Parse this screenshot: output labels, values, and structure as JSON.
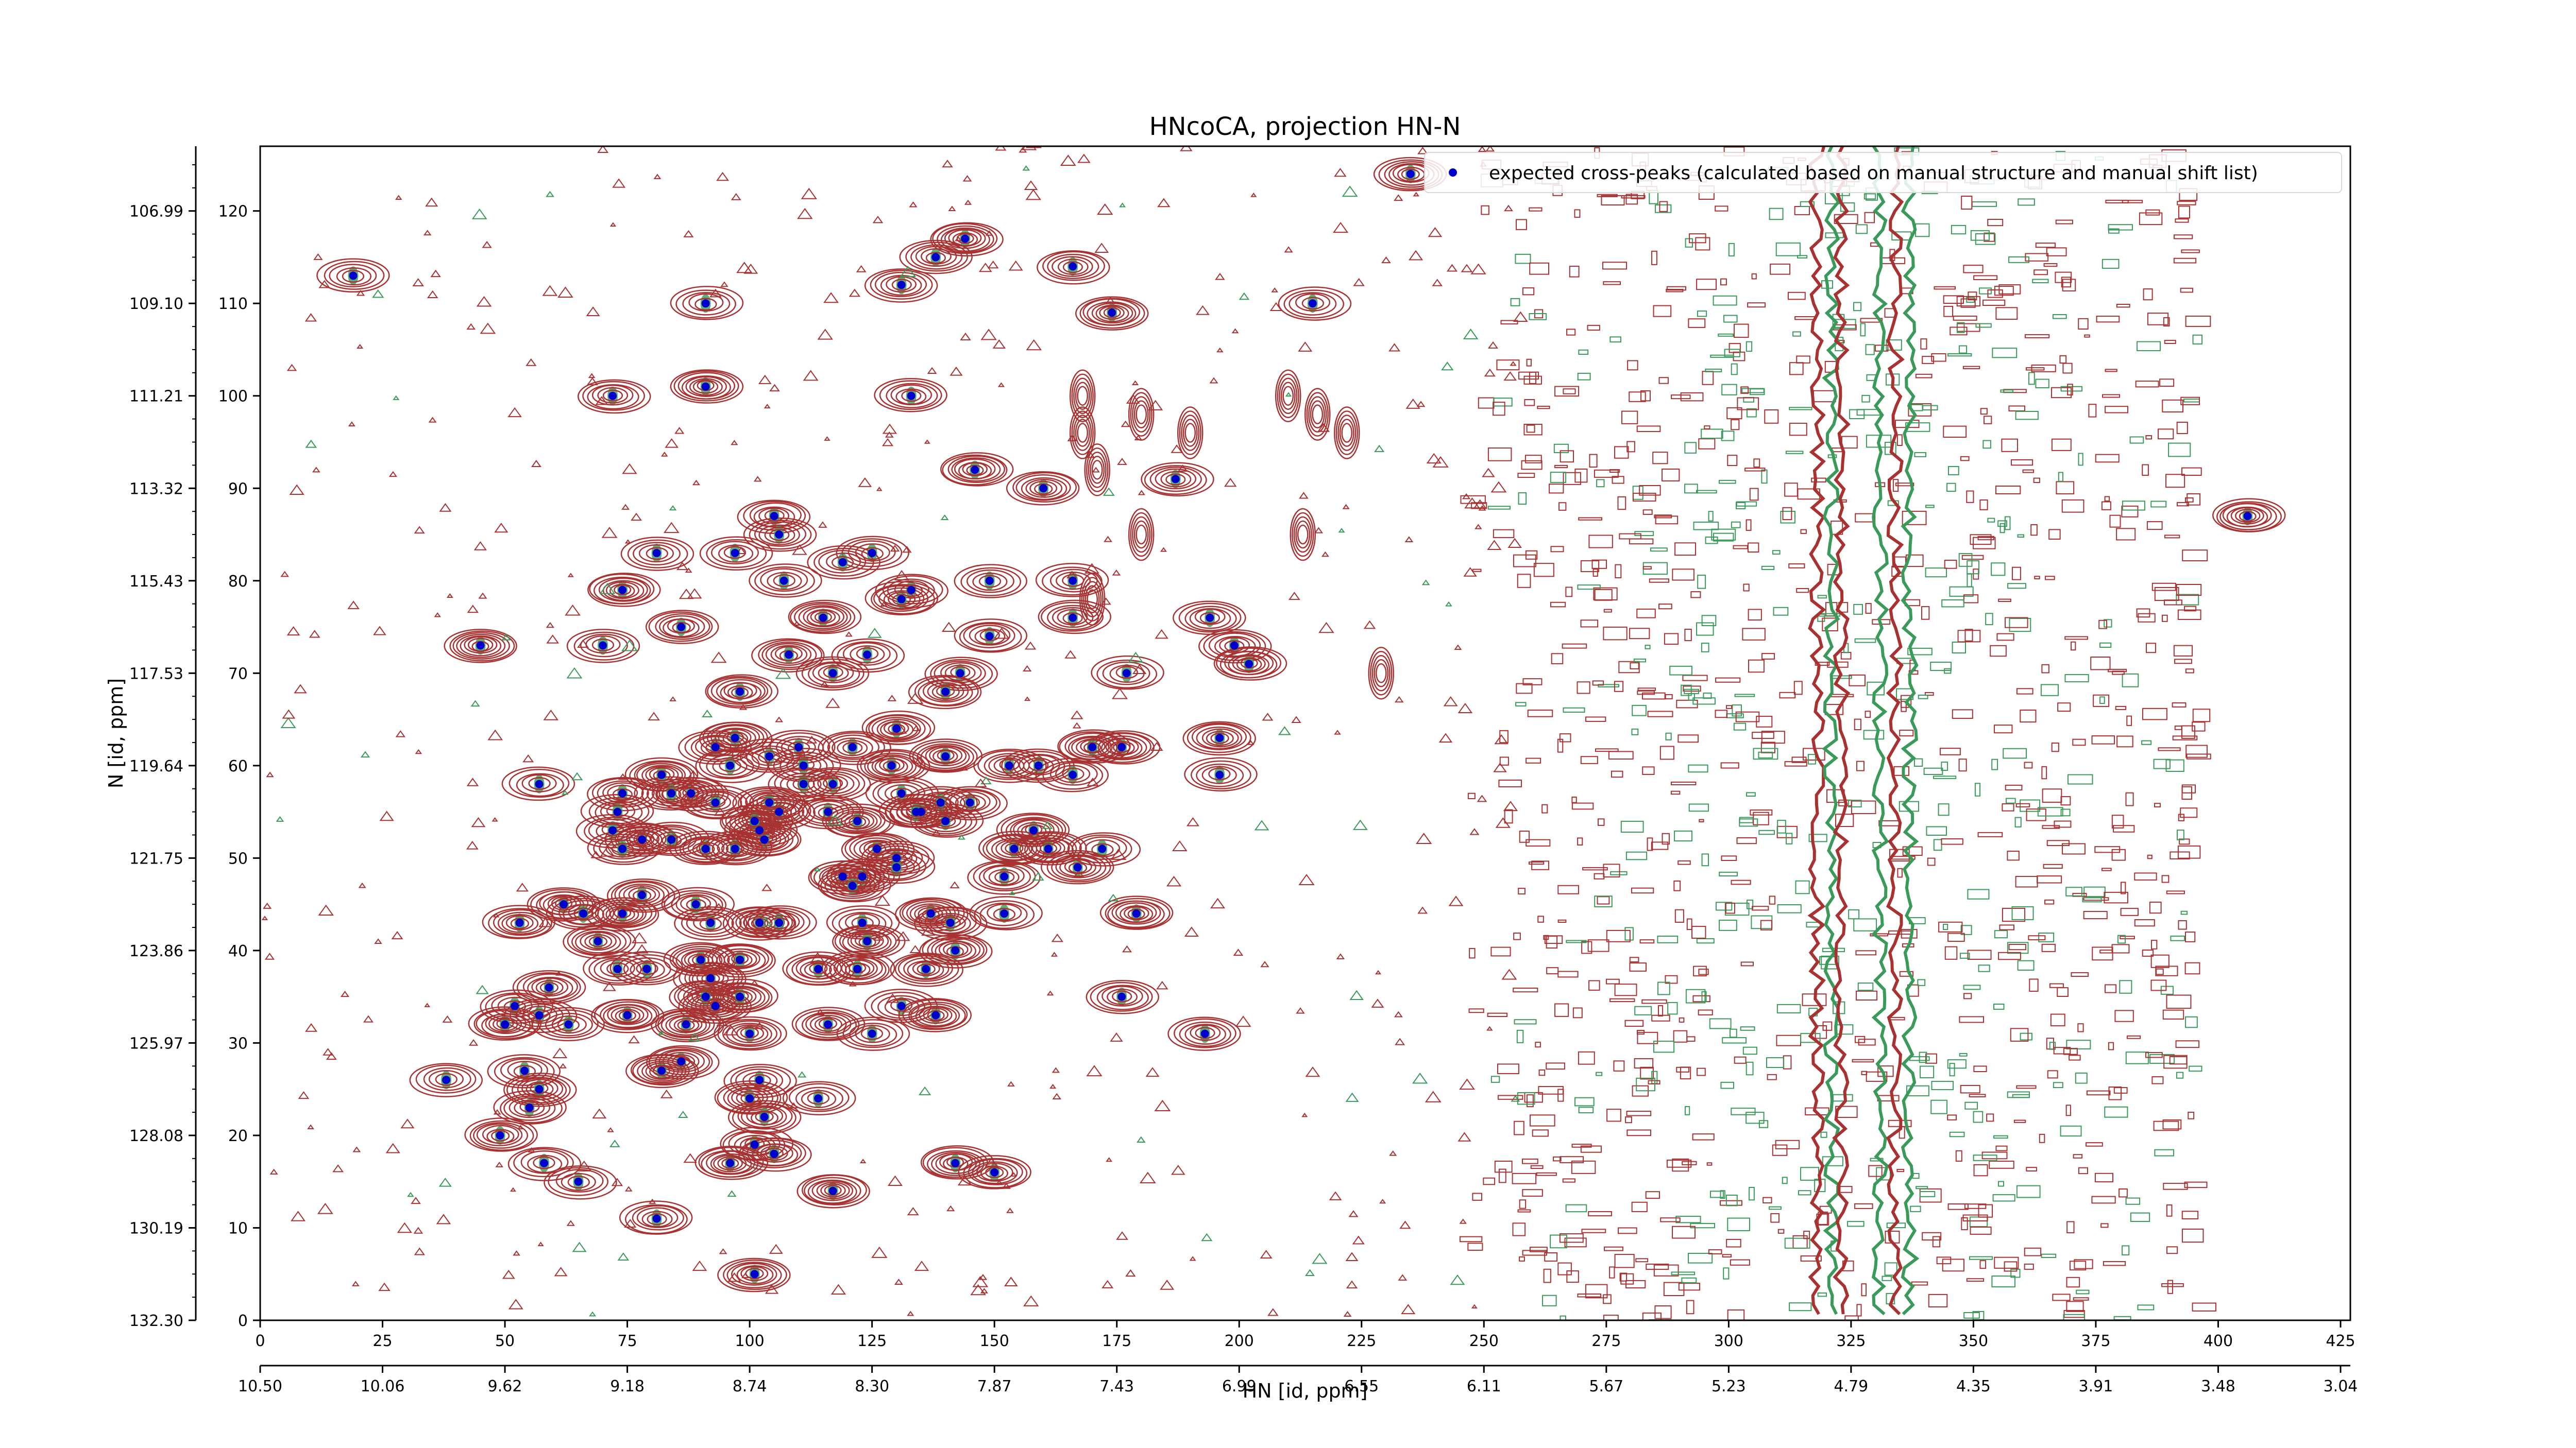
{
  "chart_data": {
    "type": "scatter",
    "title": "HNcoCA, projection HN-N",
    "xlabel": "HN [id, ppm]",
    "ylabel": "N [id, ppm]",
    "x_index_ticks": [
      "0",
      "25",
      "50",
      "75",
      "100",
      "125",
      "150",
      "175",
      "200",
      "225",
      "250",
      "275",
      "300",
      "325",
      "350",
      "375",
      "400",
      "425"
    ],
    "x_ppm_ticks": [
      "10.50",
      "10.06",
      "9.62",
      "9.18",
      "8.74",
      "8.30",
      "7.87",
      "7.43",
      "6.99",
      "6.55",
      "6.11",
      "5.67",
      "5.23",
      "4.79",
      "4.35",
      "3.91",
      "3.48",
      "3.04"
    ],
    "y_index_ticks": [
      "0",
      "10",
      "20",
      "30",
      "40",
      "50",
      "60",
      "70",
      "80",
      "90",
      "100",
      "110",
      "120"
    ],
    "y_ppm_ticks": [
      "132.30",
      "130.19",
      "128.08",
      "125.97",
      "123.86",
      "121.75",
      "119.64",
      "117.53",
      "115.43",
      "113.32",
      "111.21",
      "109.10",
      "106.99"
    ],
    "xlim": [
      0,
      427
    ],
    "ylim": [
      0,
      127
    ],
    "legend": {
      "position": "top-right",
      "entries": [
        "expected cross-peaks (calculated based on manual structure and manual shift list)"
      ]
    },
    "colors": {
      "contour_positive": "#a83232",
      "contour_negative": "#3a9a5a",
      "marker": "#0000cc"
    },
    "series": [
      {
        "name": "expected cross-peaks (calculated based on manual structure and manual shift list)",
        "points": [
          [
            235,
            124
          ],
          [
            19,
            113
          ],
          [
            144,
            117
          ],
          [
            138,
            115
          ],
          [
            131,
            112
          ],
          [
            166,
            114
          ],
          [
            91,
            110
          ],
          [
            174,
            109
          ],
          [
            215,
            110
          ],
          [
            91,
            101
          ],
          [
            72,
            100
          ],
          [
            133,
            100
          ],
          [
            146,
            92
          ],
          [
            160,
            90
          ],
          [
            187,
            91
          ],
          [
            105,
            87
          ],
          [
            106,
            85
          ],
          [
            81,
            83
          ],
          [
            97,
            83
          ],
          [
            125,
            83
          ],
          [
            119,
            82
          ],
          [
            107,
            80
          ],
          [
            133,
            79
          ],
          [
            131,
            78
          ],
          [
            149,
            80
          ],
          [
            166,
            80
          ],
          [
            74,
            79
          ],
          [
            115,
            76
          ],
          [
            149,
            74
          ],
          [
            166,
            76
          ],
          [
            86,
            75
          ],
          [
            194,
            76
          ],
          [
            199,
            73
          ],
          [
            202,
            71
          ],
          [
            45,
            73
          ],
          [
            70,
            73
          ],
          [
            108,
            72
          ],
          [
            124,
            72
          ],
          [
            117,
            70
          ],
          [
            143,
            70
          ],
          [
            177,
            70
          ],
          [
            98,
            68
          ],
          [
            140,
            68
          ],
          [
            130,
            64
          ],
          [
            176,
            62
          ],
          [
            93,
            62
          ],
          [
            97,
            63
          ],
          [
            110,
            62
          ],
          [
            121,
            62
          ],
          [
            117,
            58
          ],
          [
            129,
            60
          ],
          [
            140,
            61
          ],
          [
            153,
            60
          ],
          [
            159,
            60
          ],
          [
            166,
            59
          ],
          [
            170,
            62
          ],
          [
            196,
            63
          ],
          [
            196,
            59
          ],
          [
            57,
            58
          ],
          [
            88,
            57
          ],
          [
            74,
            57
          ],
          [
            73,
            55
          ],
          [
            82,
            59
          ],
          [
            104,
            61
          ],
          [
            111,
            60
          ],
          [
            96,
            60
          ],
          [
            84,
            57
          ],
          [
            93,
            56
          ],
          [
            102,
            53
          ],
          [
            106,
            55
          ],
          [
            111,
            58
          ],
          [
            116,
            55
          ],
          [
            131,
            57
          ],
          [
            135,
            55
          ],
          [
            140,
            54
          ],
          [
            145,
            56
          ],
          [
            158,
            53
          ],
          [
            122,
            54
          ],
          [
            126,
            51
          ],
          [
            130,
            50
          ],
          [
            139,
            56
          ],
          [
            103,
            52
          ],
          [
            72,
            53
          ],
          [
            78,
            52
          ],
          [
            84,
            52
          ],
          [
            91,
            51
          ],
          [
            154,
            51
          ],
          [
            161,
            51
          ],
          [
            167,
            49
          ],
          [
            172,
            51
          ],
          [
            104,
            56
          ],
          [
            101,
            54
          ],
          [
            97,
            51
          ],
          [
            134,
            55
          ],
          [
            119,
            48
          ],
          [
            123,
            48
          ],
          [
            121,
            47
          ],
          [
            130,
            49
          ],
          [
            152,
            48
          ],
          [
            74,
            51
          ],
          [
            53,
            43
          ],
          [
            69,
            41
          ],
          [
            74,
            44
          ],
          [
            78,
            46
          ],
          [
            92,
            43
          ],
          [
            102,
            43
          ],
          [
            106,
            43
          ],
          [
            123,
            43
          ],
          [
            137,
            44
          ],
          [
            141,
            43
          ],
          [
            152,
            44
          ],
          [
            179,
            44
          ],
          [
            62,
            45
          ],
          [
            66,
            44
          ],
          [
            89,
            45
          ],
          [
            124,
            41
          ],
          [
            92,
            37
          ],
          [
            93,
            34
          ],
          [
            90,
            39
          ],
          [
            98,
            39
          ],
          [
            73,
            38
          ],
          [
            59,
            36
          ],
          [
            114,
            38
          ],
          [
            122,
            38
          ],
          [
            136,
            38
          ],
          [
            142,
            40
          ],
          [
            79,
            38
          ],
          [
            91,
            35
          ],
          [
            98,
            35
          ],
          [
            52,
            34
          ],
          [
            57,
            33
          ],
          [
            63,
            32
          ],
          [
            75,
            33
          ],
          [
            87,
            32
          ],
          [
            100,
            31
          ],
          [
            116,
            32
          ],
          [
            131,
            34
          ],
          [
            138,
            33
          ],
          [
            50,
            32
          ],
          [
            86,
            28
          ],
          [
            125,
            31
          ],
          [
            176,
            35
          ],
          [
            193,
            31
          ],
          [
            38,
            26
          ],
          [
            54,
            27
          ],
          [
            55,
            23
          ],
          [
            57,
            25
          ],
          [
            102,
            26
          ],
          [
            100,
            24
          ],
          [
            103,
            22
          ],
          [
            114,
            24
          ],
          [
            82,
            27
          ],
          [
            49,
            20
          ],
          [
            58,
            17
          ],
          [
            101,
            19
          ],
          [
            105,
            18
          ],
          [
            65,
            15
          ],
          [
            96,
            17
          ],
          [
            142,
            17
          ],
          [
            150,
            16
          ],
          [
            117,
            14
          ],
          [
            81,
            11
          ],
          [
            101,
            5
          ],
          [
            406,
            87
          ]
        ]
      }
    ]
  }
}
